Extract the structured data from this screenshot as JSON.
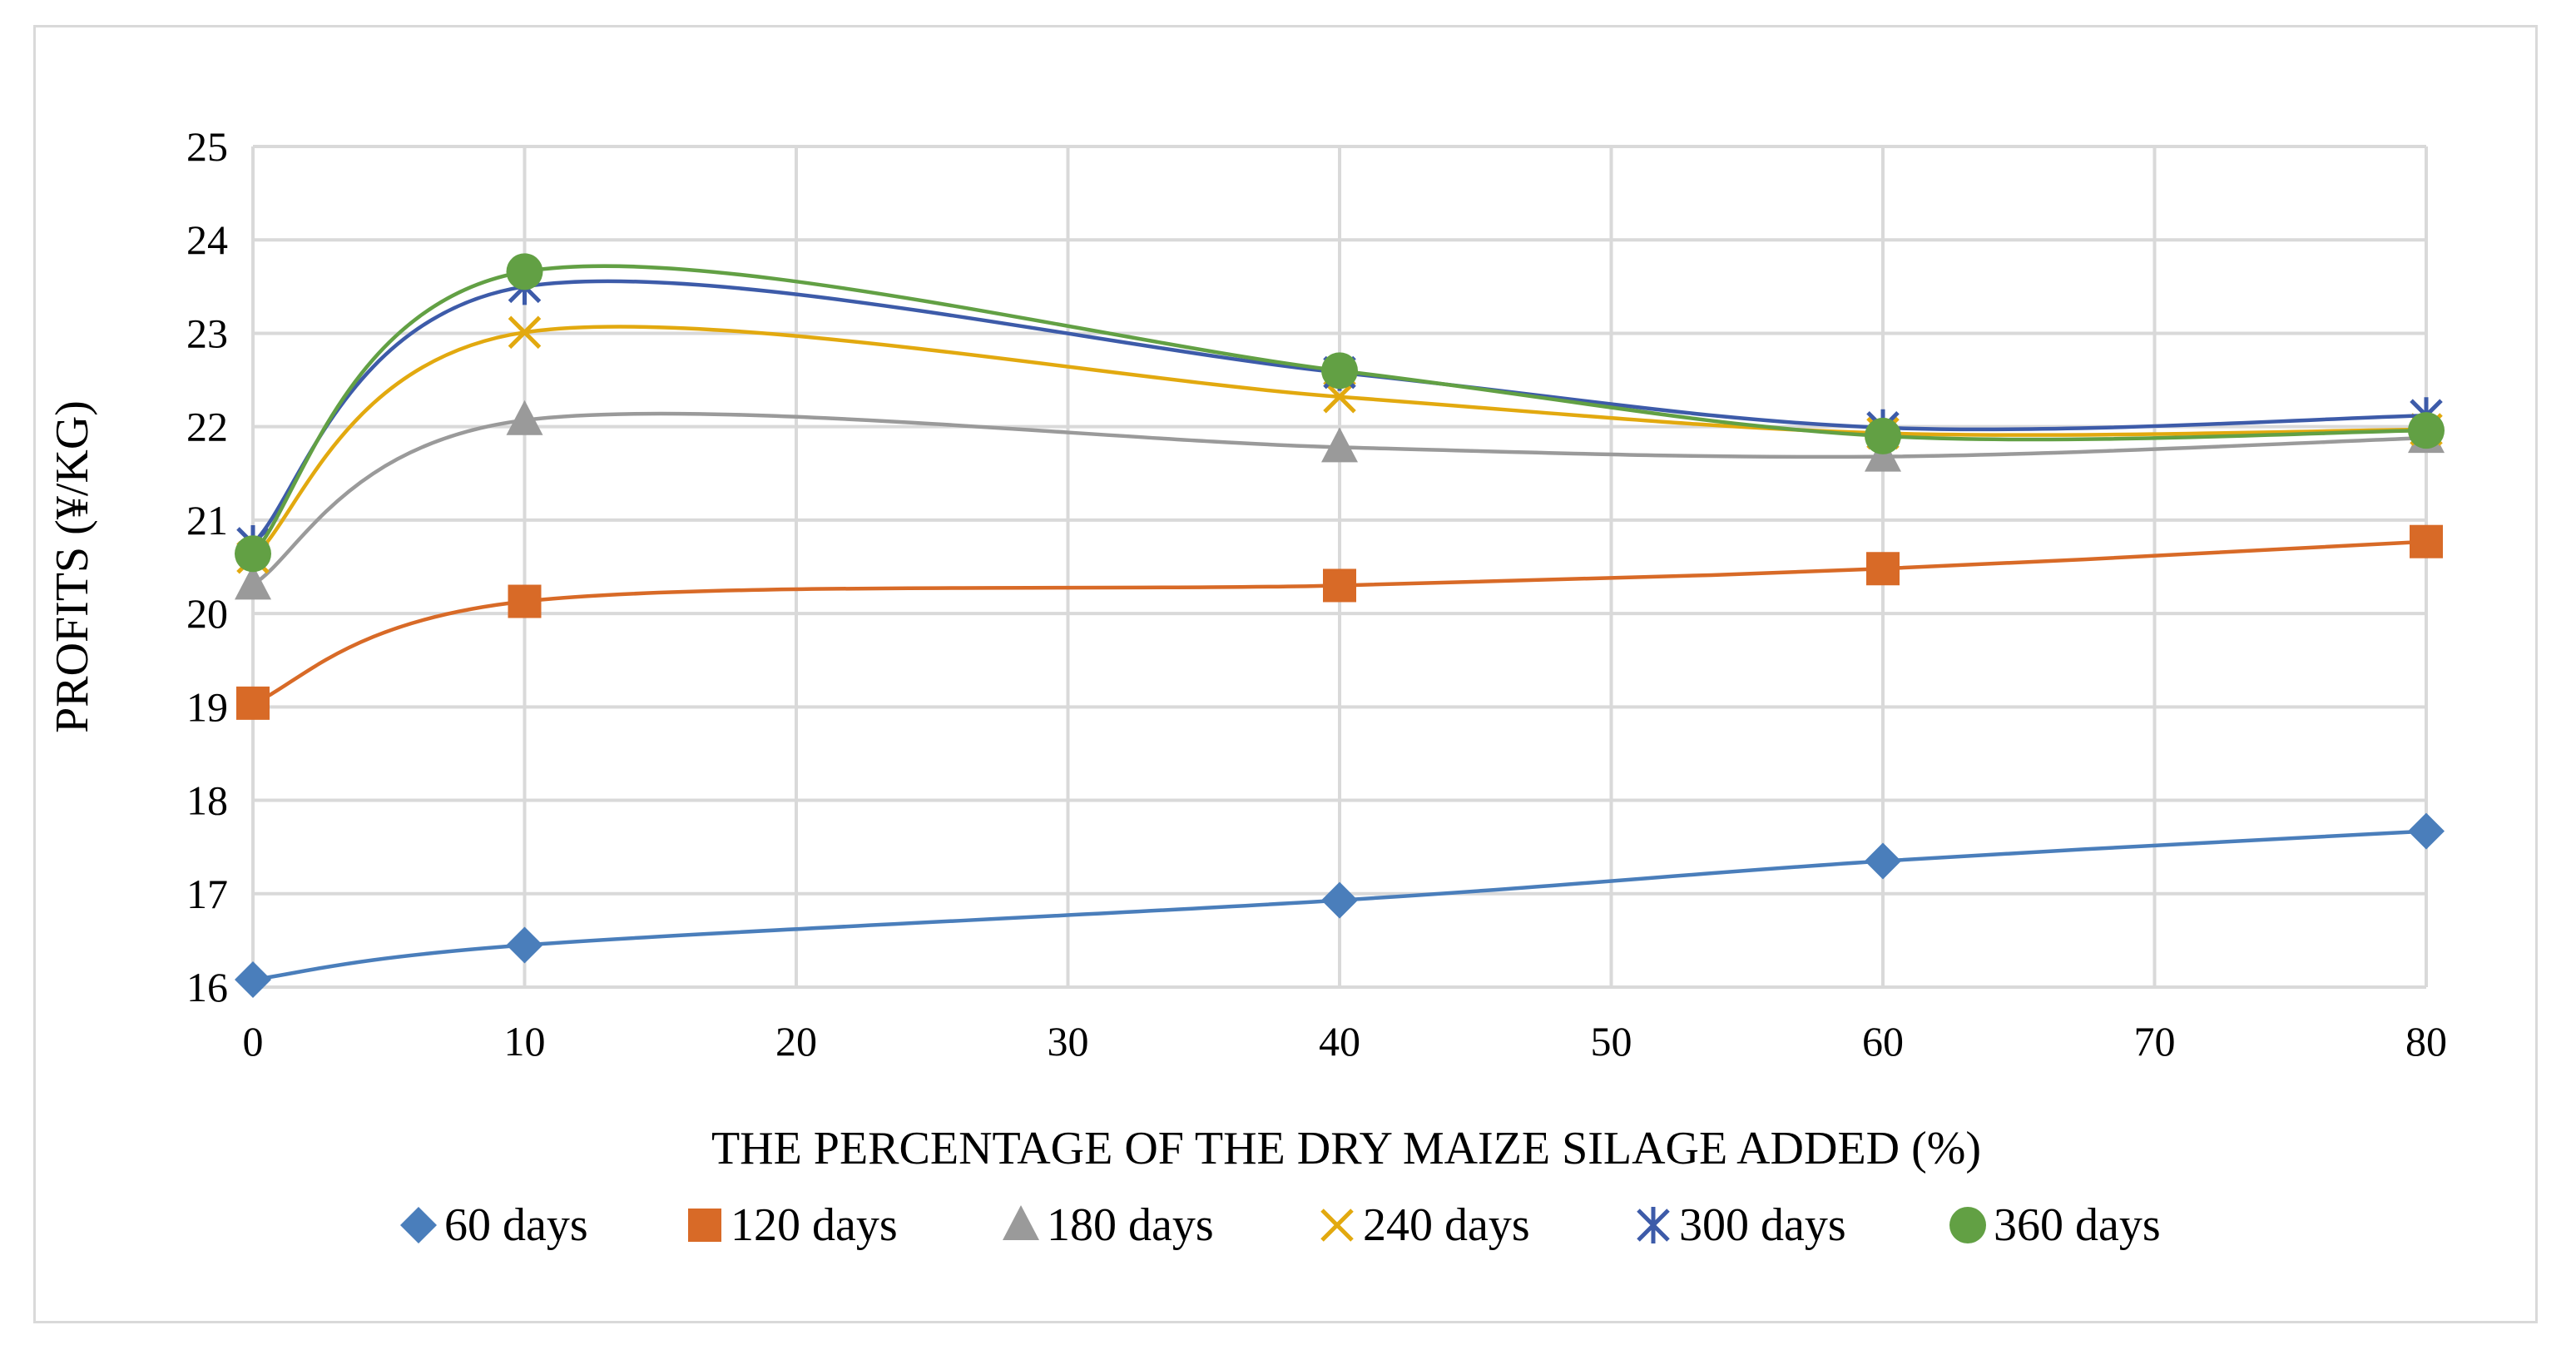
{
  "chart_data": {
    "type": "line",
    "title": "",
    "xlabel": "THE PERCENTAGE OF THE DRY MAIZE SILAGE ADDED (%)",
    "ylabel": "PROFITS  (¥/KG)",
    "xlim": [
      0,
      80
    ],
    "ylim": [
      16,
      25
    ],
    "x_ticks": [
      "0",
      "10",
      "20",
      "30",
      "40",
      "50",
      "60",
      "70",
      "80"
    ],
    "y_ticks": [
      "16",
      "17",
      "18",
      "19",
      "20",
      "21",
      "22",
      "23",
      "24",
      "25"
    ],
    "grid": true,
    "legend_position": "bottom",
    "x": [
      0,
      10,
      40,
      60,
      80
    ],
    "series": [
      {
        "name": "60 days",
        "values": [
          16.08,
          16.45,
          16.93,
          17.35,
          17.67
        ],
        "color": "#4a7ebb",
        "marker": "diamond"
      },
      {
        "name": "120 days",
        "values": [
          19.04,
          20.13,
          20.3,
          20.48,
          20.77
        ],
        "color": "#d86a27",
        "marker": "square"
      },
      {
        "name": "180 days",
        "values": [
          20.31,
          22.07,
          21.78,
          21.68,
          21.88
        ],
        "color": "#9a9a9a",
        "marker": "triangle"
      },
      {
        "name": "240 days",
        "values": [
          20.6,
          23.01,
          22.32,
          21.93,
          21.97
        ],
        "color": "#e2a90f",
        "marker": "x"
      },
      {
        "name": "300 days",
        "values": [
          20.75,
          23.5,
          22.58,
          21.99,
          22.12
        ],
        "color": "#3d5ba9",
        "marker": "star"
      },
      {
        "name": "360 days",
        "values": [
          20.64,
          23.66,
          22.6,
          21.9,
          21.96
        ],
        "color": "#62a044",
        "marker": "circle"
      }
    ]
  }
}
